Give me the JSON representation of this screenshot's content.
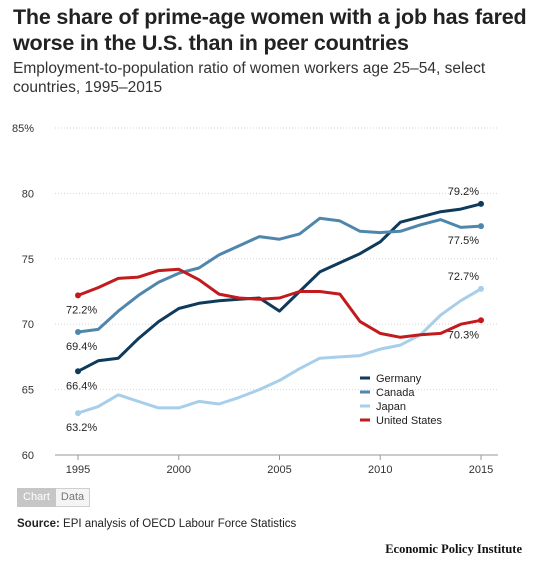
{
  "header": {
    "title": "The share of prime-age women with a job has fared worse in the U.S. than in peer countries",
    "subtitle": "Employment-to-population ratio of women workers age 25–54, select countries, 1995–2015"
  },
  "tabs": {
    "chart_label": "Chart",
    "data_label": "Data"
  },
  "footer": {
    "source_label": "Source:",
    "source_text": " EPI analysis of OECD Labour Force Statistics",
    "organization": "Economic Policy Institute"
  },
  "chart_data": {
    "type": "line",
    "title": "The share of prime-age women with a job has fared worse in the U.S. than in peer countries",
    "xlabel": "",
    "ylabel": "",
    "x": [
      1995,
      1996,
      1997,
      1998,
      1999,
      2000,
      2001,
      2002,
      2003,
      2004,
      2005,
      2006,
      2007,
      2008,
      2009,
      2010,
      2011,
      2012,
      2013,
      2014,
      2015
    ],
    "xlim": [
      1995,
      2015
    ],
    "ylim": [
      60,
      85
    ],
    "x_ticks": [
      1995,
      2000,
      2005,
      2010,
      2015
    ],
    "y_ticks": [
      {
        "value": 60,
        "label": "60"
      },
      {
        "value": 65,
        "label": "65"
      },
      {
        "value": 70,
        "label": "70"
      },
      {
        "value": 75,
        "label": "75"
      },
      {
        "value": 80,
        "label": "80"
      },
      {
        "value": 85,
        "label": "85%"
      }
    ],
    "grid": true,
    "legend_position": "bottom-right",
    "series": [
      {
        "name": "Germany",
        "color": "#0e3a5c",
        "values": [
          66.4,
          67.2,
          67.4,
          68.9,
          70.2,
          71.2,
          71.6,
          71.8,
          71.9,
          72.0,
          71.0,
          72.5,
          74.0,
          74.7,
          75.4,
          76.3,
          77.8,
          78.2,
          78.6,
          78.8,
          79.2
        ],
        "labels": [
          {
            "index": 0,
            "text": "66.4%",
            "pos": "below"
          },
          {
            "index": 20,
            "text": "79.2%",
            "pos": "above"
          }
        ]
      },
      {
        "name": "Canada",
        "color": "#4f87ac",
        "values": [
          69.4,
          69.6,
          71.0,
          72.2,
          73.2,
          73.9,
          74.3,
          75.3,
          76.0,
          76.7,
          76.5,
          76.9,
          78.1,
          77.9,
          77.1,
          77.0,
          77.1,
          77.6,
          78.0,
          77.4,
          77.5
        ],
        "labels": [
          {
            "index": 0,
            "text": "69.4%",
            "pos": "below"
          },
          {
            "index": 20,
            "text": "77.5%",
            "pos": "below"
          }
        ]
      },
      {
        "name": "Japan",
        "color": "#a8cfe9",
        "values": [
          63.2,
          63.7,
          64.6,
          64.1,
          63.6,
          63.6,
          64.1,
          63.9,
          64.4,
          65.0,
          65.7,
          66.6,
          67.4,
          67.5,
          67.6,
          68.1,
          68.4,
          69.2,
          70.7,
          71.8,
          72.7
        ],
        "labels": [
          {
            "index": 0,
            "text": "63.2%",
            "pos": "below"
          },
          {
            "index": 20,
            "text": "72.7%",
            "pos": "above"
          }
        ]
      },
      {
        "name": "United States",
        "color": "#c21a1d",
        "values": [
          72.2,
          72.8,
          73.5,
          73.6,
          74.1,
          74.2,
          73.4,
          72.3,
          72.0,
          71.9,
          72.0,
          72.5,
          72.5,
          72.3,
          70.2,
          69.3,
          69.0,
          69.2,
          69.3,
          70.0,
          70.3
        ],
        "labels": [
          {
            "index": 0,
            "text": "72.2%",
            "pos": "below"
          },
          {
            "index": 20,
            "text": "70.3%",
            "pos": "below"
          }
        ]
      }
    ]
  }
}
